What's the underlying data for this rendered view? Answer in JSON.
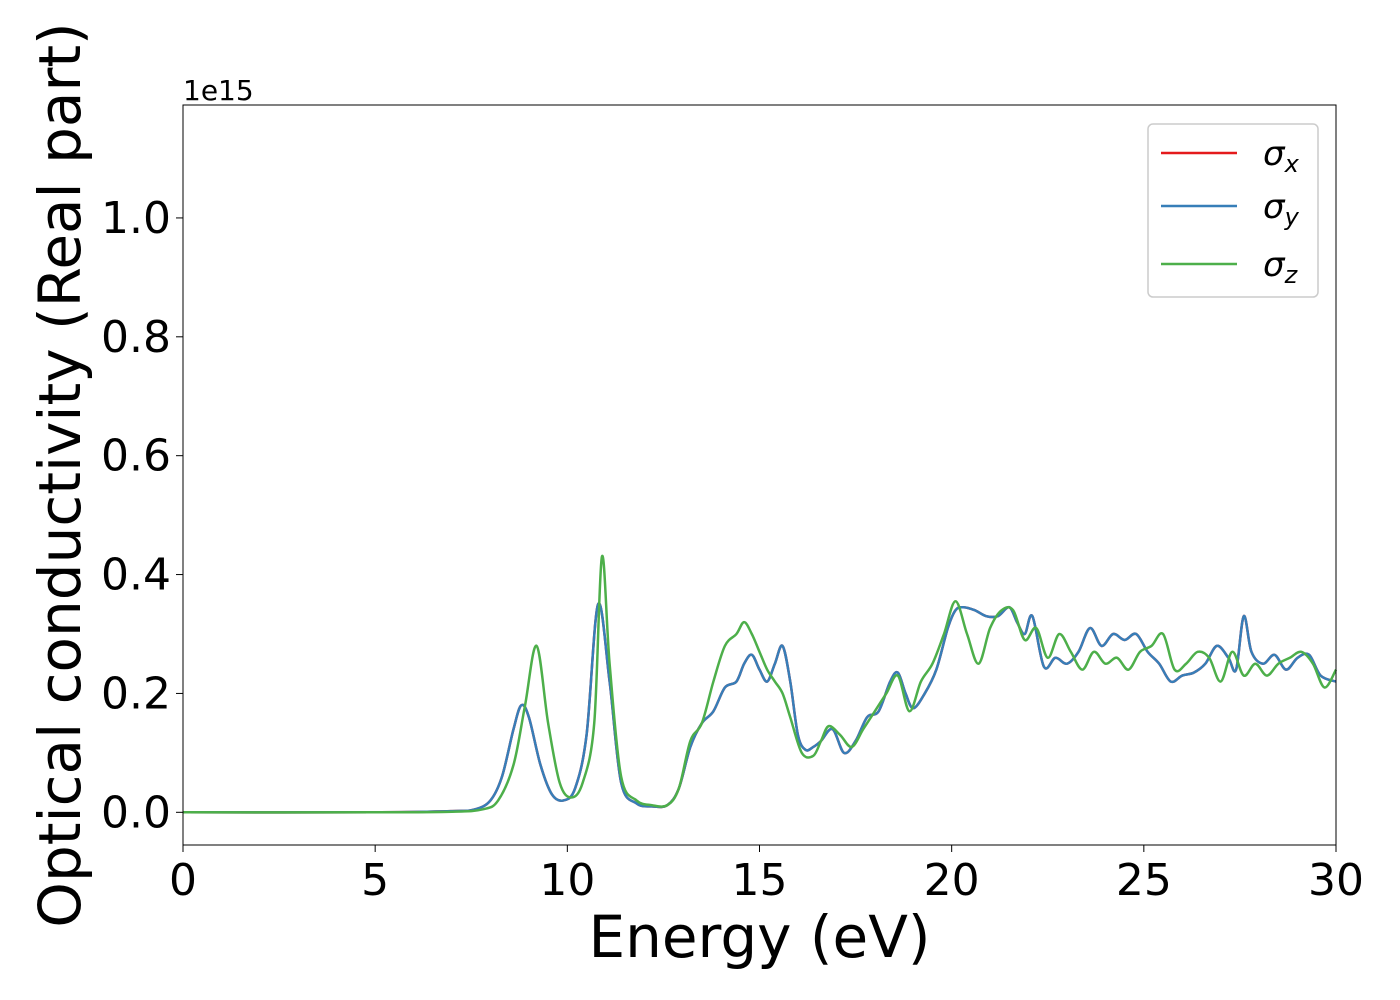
{
  "colors": {
    "sigma_x": "#e41a1c",
    "sigma_y": "#377eb8",
    "sigma_z": "#4daf4a",
    "axis": "#000000",
    "background": "#ffffff"
  },
  "chart_data": {
    "type": "line",
    "title": "",
    "xlabel": "Energy (eV)",
    "ylabel": "Optical conductivity (Real part)",
    "y_offset_text": "1e15",
    "xlim": [
      0,
      30
    ],
    "ylim": [
      -0.055,
      1.19
    ],
    "x_ticks": [
      0,
      5,
      10,
      15,
      20,
      25,
      30
    ],
    "x_tick_labels": [
      "0",
      "5",
      "10",
      "15",
      "20",
      "25",
      "30"
    ],
    "y_ticks": [
      0.0,
      0.2,
      0.4,
      0.6,
      0.8,
      1.0
    ],
    "y_tick_labels": [
      "0.0",
      "0.2",
      "0.4",
      "0.6",
      "0.8",
      "1.0"
    ],
    "grid": false,
    "legend_position": "top-right",
    "series": [
      {
        "name": "x",
        "legend_symbol": "σ",
        "legend_sub": "x",
        "color_key": "sigma_x",
        "x": [
          0,
          5,
          7,
          7.6,
          8.0,
          8.3,
          8.6,
          8.8,
          9.0,
          9.3,
          9.6,
          9.9,
          10.2,
          10.5,
          10.8,
          11.1,
          11.4,
          11.8,
          12.2,
          12.6,
          12.9,
          13.2,
          13.5,
          13.8,
          14.1,
          14.4,
          14.6,
          14.8,
          15.0,
          15.2,
          15.4,
          15.6,
          15.8,
          16.0,
          16.2,
          16.4,
          16.6,
          16.9,
          17.2,
          17.5,
          17.8,
          18.1,
          18.4,
          18.6,
          18.8,
          19.0,
          19.3,
          19.6,
          19.9,
          20.1,
          20.3,
          20.6,
          20.9,
          21.2,
          21.5,
          21.7,
          21.9,
          22.1,
          22.4,
          22.7,
          23.0,
          23.3,
          23.6,
          23.9,
          24.2,
          24.5,
          24.8,
          25.1,
          25.4,
          25.7,
          26.0,
          26.3,
          26.6,
          26.9,
          27.2,
          27.4,
          27.6,
          27.8,
          28.1,
          28.4,
          28.7,
          29.0,
          29.3,
          29.6,
          30.0
        ],
        "y": [
          0,
          0,
          0.002,
          0.005,
          0.02,
          0.06,
          0.14,
          0.18,
          0.16,
          0.08,
          0.03,
          0.02,
          0.04,
          0.13,
          0.35,
          0.22,
          0.05,
          0.015,
          0.01,
          0.012,
          0.04,
          0.11,
          0.15,
          0.17,
          0.21,
          0.22,
          0.25,
          0.265,
          0.24,
          0.22,
          0.25,
          0.28,
          0.22,
          0.13,
          0.105,
          0.11,
          0.12,
          0.14,
          0.1,
          0.12,
          0.16,
          0.17,
          0.22,
          0.235,
          0.2,
          0.175,
          0.2,
          0.24,
          0.31,
          0.34,
          0.345,
          0.34,
          0.33,
          0.33,
          0.345,
          0.32,
          0.3,
          0.33,
          0.245,
          0.26,
          0.25,
          0.27,
          0.31,
          0.28,
          0.3,
          0.29,
          0.3,
          0.27,
          0.25,
          0.22,
          0.23,
          0.235,
          0.25,
          0.28,
          0.26,
          0.24,
          0.33,
          0.27,
          0.25,
          0.265,
          0.24,
          0.26,
          0.265,
          0.23,
          0.22
        ]
      },
      {
        "name": "y",
        "legend_symbol": "σ",
        "legend_sub": "y",
        "color_key": "sigma_y",
        "x": [
          0,
          5,
          7,
          7.6,
          8.0,
          8.3,
          8.6,
          8.8,
          9.0,
          9.3,
          9.6,
          9.9,
          10.2,
          10.5,
          10.8,
          11.1,
          11.4,
          11.8,
          12.2,
          12.6,
          12.9,
          13.2,
          13.5,
          13.8,
          14.1,
          14.4,
          14.6,
          14.8,
          15.0,
          15.2,
          15.4,
          15.6,
          15.8,
          16.0,
          16.2,
          16.4,
          16.6,
          16.9,
          17.2,
          17.5,
          17.8,
          18.1,
          18.4,
          18.6,
          18.8,
          19.0,
          19.3,
          19.6,
          19.9,
          20.1,
          20.3,
          20.6,
          20.9,
          21.2,
          21.5,
          21.7,
          21.9,
          22.1,
          22.4,
          22.7,
          23.0,
          23.3,
          23.6,
          23.9,
          24.2,
          24.5,
          24.8,
          25.1,
          25.4,
          25.7,
          26.0,
          26.3,
          26.6,
          26.9,
          27.2,
          27.4,
          27.6,
          27.8,
          28.1,
          28.4,
          28.7,
          29.0,
          29.3,
          29.6,
          30.0
        ],
        "y": [
          0,
          0,
          0.002,
          0.005,
          0.02,
          0.06,
          0.14,
          0.18,
          0.16,
          0.08,
          0.03,
          0.02,
          0.04,
          0.13,
          0.35,
          0.22,
          0.05,
          0.015,
          0.01,
          0.012,
          0.04,
          0.11,
          0.15,
          0.17,
          0.21,
          0.22,
          0.25,
          0.265,
          0.24,
          0.22,
          0.25,
          0.28,
          0.22,
          0.13,
          0.105,
          0.11,
          0.12,
          0.14,
          0.1,
          0.12,
          0.16,
          0.17,
          0.22,
          0.235,
          0.2,
          0.175,
          0.2,
          0.24,
          0.31,
          0.34,
          0.345,
          0.34,
          0.33,
          0.33,
          0.345,
          0.32,
          0.3,
          0.33,
          0.245,
          0.26,
          0.25,
          0.27,
          0.31,
          0.28,
          0.3,
          0.29,
          0.3,
          0.27,
          0.25,
          0.22,
          0.23,
          0.235,
          0.25,
          0.28,
          0.26,
          0.24,
          0.33,
          0.27,
          0.25,
          0.265,
          0.24,
          0.26,
          0.265,
          0.23,
          0.22
        ]
      },
      {
        "name": "z",
        "legend_symbol": "σ",
        "legend_sub": "z",
        "color_key": "sigma_z",
        "x": [
          0,
          5,
          7,
          7.8,
          8.2,
          8.6,
          8.9,
          9.2,
          9.5,
          9.8,
          10.1,
          10.4,
          10.7,
          10.9,
          11.1,
          11.4,
          11.8,
          12.2,
          12.6,
          12.9,
          13.2,
          13.5,
          13.8,
          14.1,
          14.4,
          14.6,
          14.8,
          15.0,
          15.2,
          15.4,
          15.6,
          15.8,
          16.1,
          16.4,
          16.6,
          16.8,
          17.1,
          17.4,
          17.7,
          18.0,
          18.3,
          18.6,
          18.9,
          19.2,
          19.5,
          19.8,
          20.1,
          20.4,
          20.7,
          21.0,
          21.3,
          21.6,
          21.9,
          22.2,
          22.5,
          22.8,
          23.1,
          23.4,
          23.7,
          24.0,
          24.3,
          24.6,
          24.9,
          25.2,
          25.5,
          25.8,
          26.1,
          26.4,
          26.7,
          27.0,
          27.3,
          27.6,
          27.9,
          28.2,
          28.5,
          28.8,
          29.1,
          29.4,
          29.7,
          30.0
        ],
        "y": [
          0,
          0,
          0.001,
          0.005,
          0.02,
          0.08,
          0.18,
          0.28,
          0.15,
          0.05,
          0.025,
          0.05,
          0.15,
          0.43,
          0.25,
          0.06,
          0.02,
          0.012,
          0.012,
          0.04,
          0.12,
          0.15,
          0.22,
          0.28,
          0.3,
          0.32,
          0.3,
          0.27,
          0.24,
          0.22,
          0.2,
          0.16,
          0.1,
          0.095,
          0.12,
          0.145,
          0.13,
          0.11,
          0.14,
          0.17,
          0.2,
          0.23,
          0.17,
          0.22,
          0.25,
          0.3,
          0.355,
          0.3,
          0.25,
          0.31,
          0.34,
          0.34,
          0.29,
          0.31,
          0.26,
          0.3,
          0.27,
          0.24,
          0.27,
          0.25,
          0.26,
          0.24,
          0.27,
          0.28,
          0.3,
          0.24,
          0.25,
          0.27,
          0.26,
          0.22,
          0.27,
          0.23,
          0.25,
          0.23,
          0.25,
          0.26,
          0.27,
          0.25,
          0.21,
          0.24
        ]
      }
    ]
  }
}
